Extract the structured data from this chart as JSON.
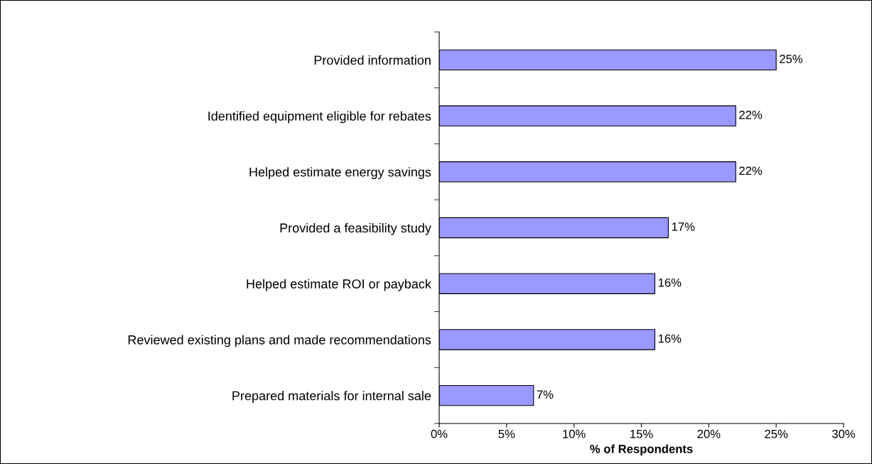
{
  "chart_data": {
    "type": "bar",
    "orientation": "horizontal",
    "categories": [
      "Provided information",
      "Identified equipment eligible for rebates",
      "Helped estimate energy savings",
      "Provided a feasibility study",
      "Helped estimate ROI or payback",
      "Reviewed existing plans and made recommendations",
      "Prepared materials for internal sale"
    ],
    "values": [
      25,
      22,
      22,
      17,
      16,
      16,
      7
    ],
    "value_labels": [
      "25%",
      "22%",
      "22%",
      "17%",
      "16%",
      "16%",
      "7%"
    ],
    "color": "#9999ff",
    "xlabel": "% of Respondents",
    "xlim": [
      0,
      30
    ],
    "xticks": [
      {
        "value": 0,
        "label": "0%"
      },
      {
        "value": 5,
        "label": "5%"
      },
      {
        "value": 10,
        "label": "10%"
      },
      {
        "value": 15,
        "label": "15%"
      },
      {
        "value": 20,
        "label": "20%"
      },
      {
        "value": 25,
        "label": "25%"
      },
      {
        "value": 30,
        "label": "30%"
      }
    ],
    "grid": false,
    "legend": false
  }
}
